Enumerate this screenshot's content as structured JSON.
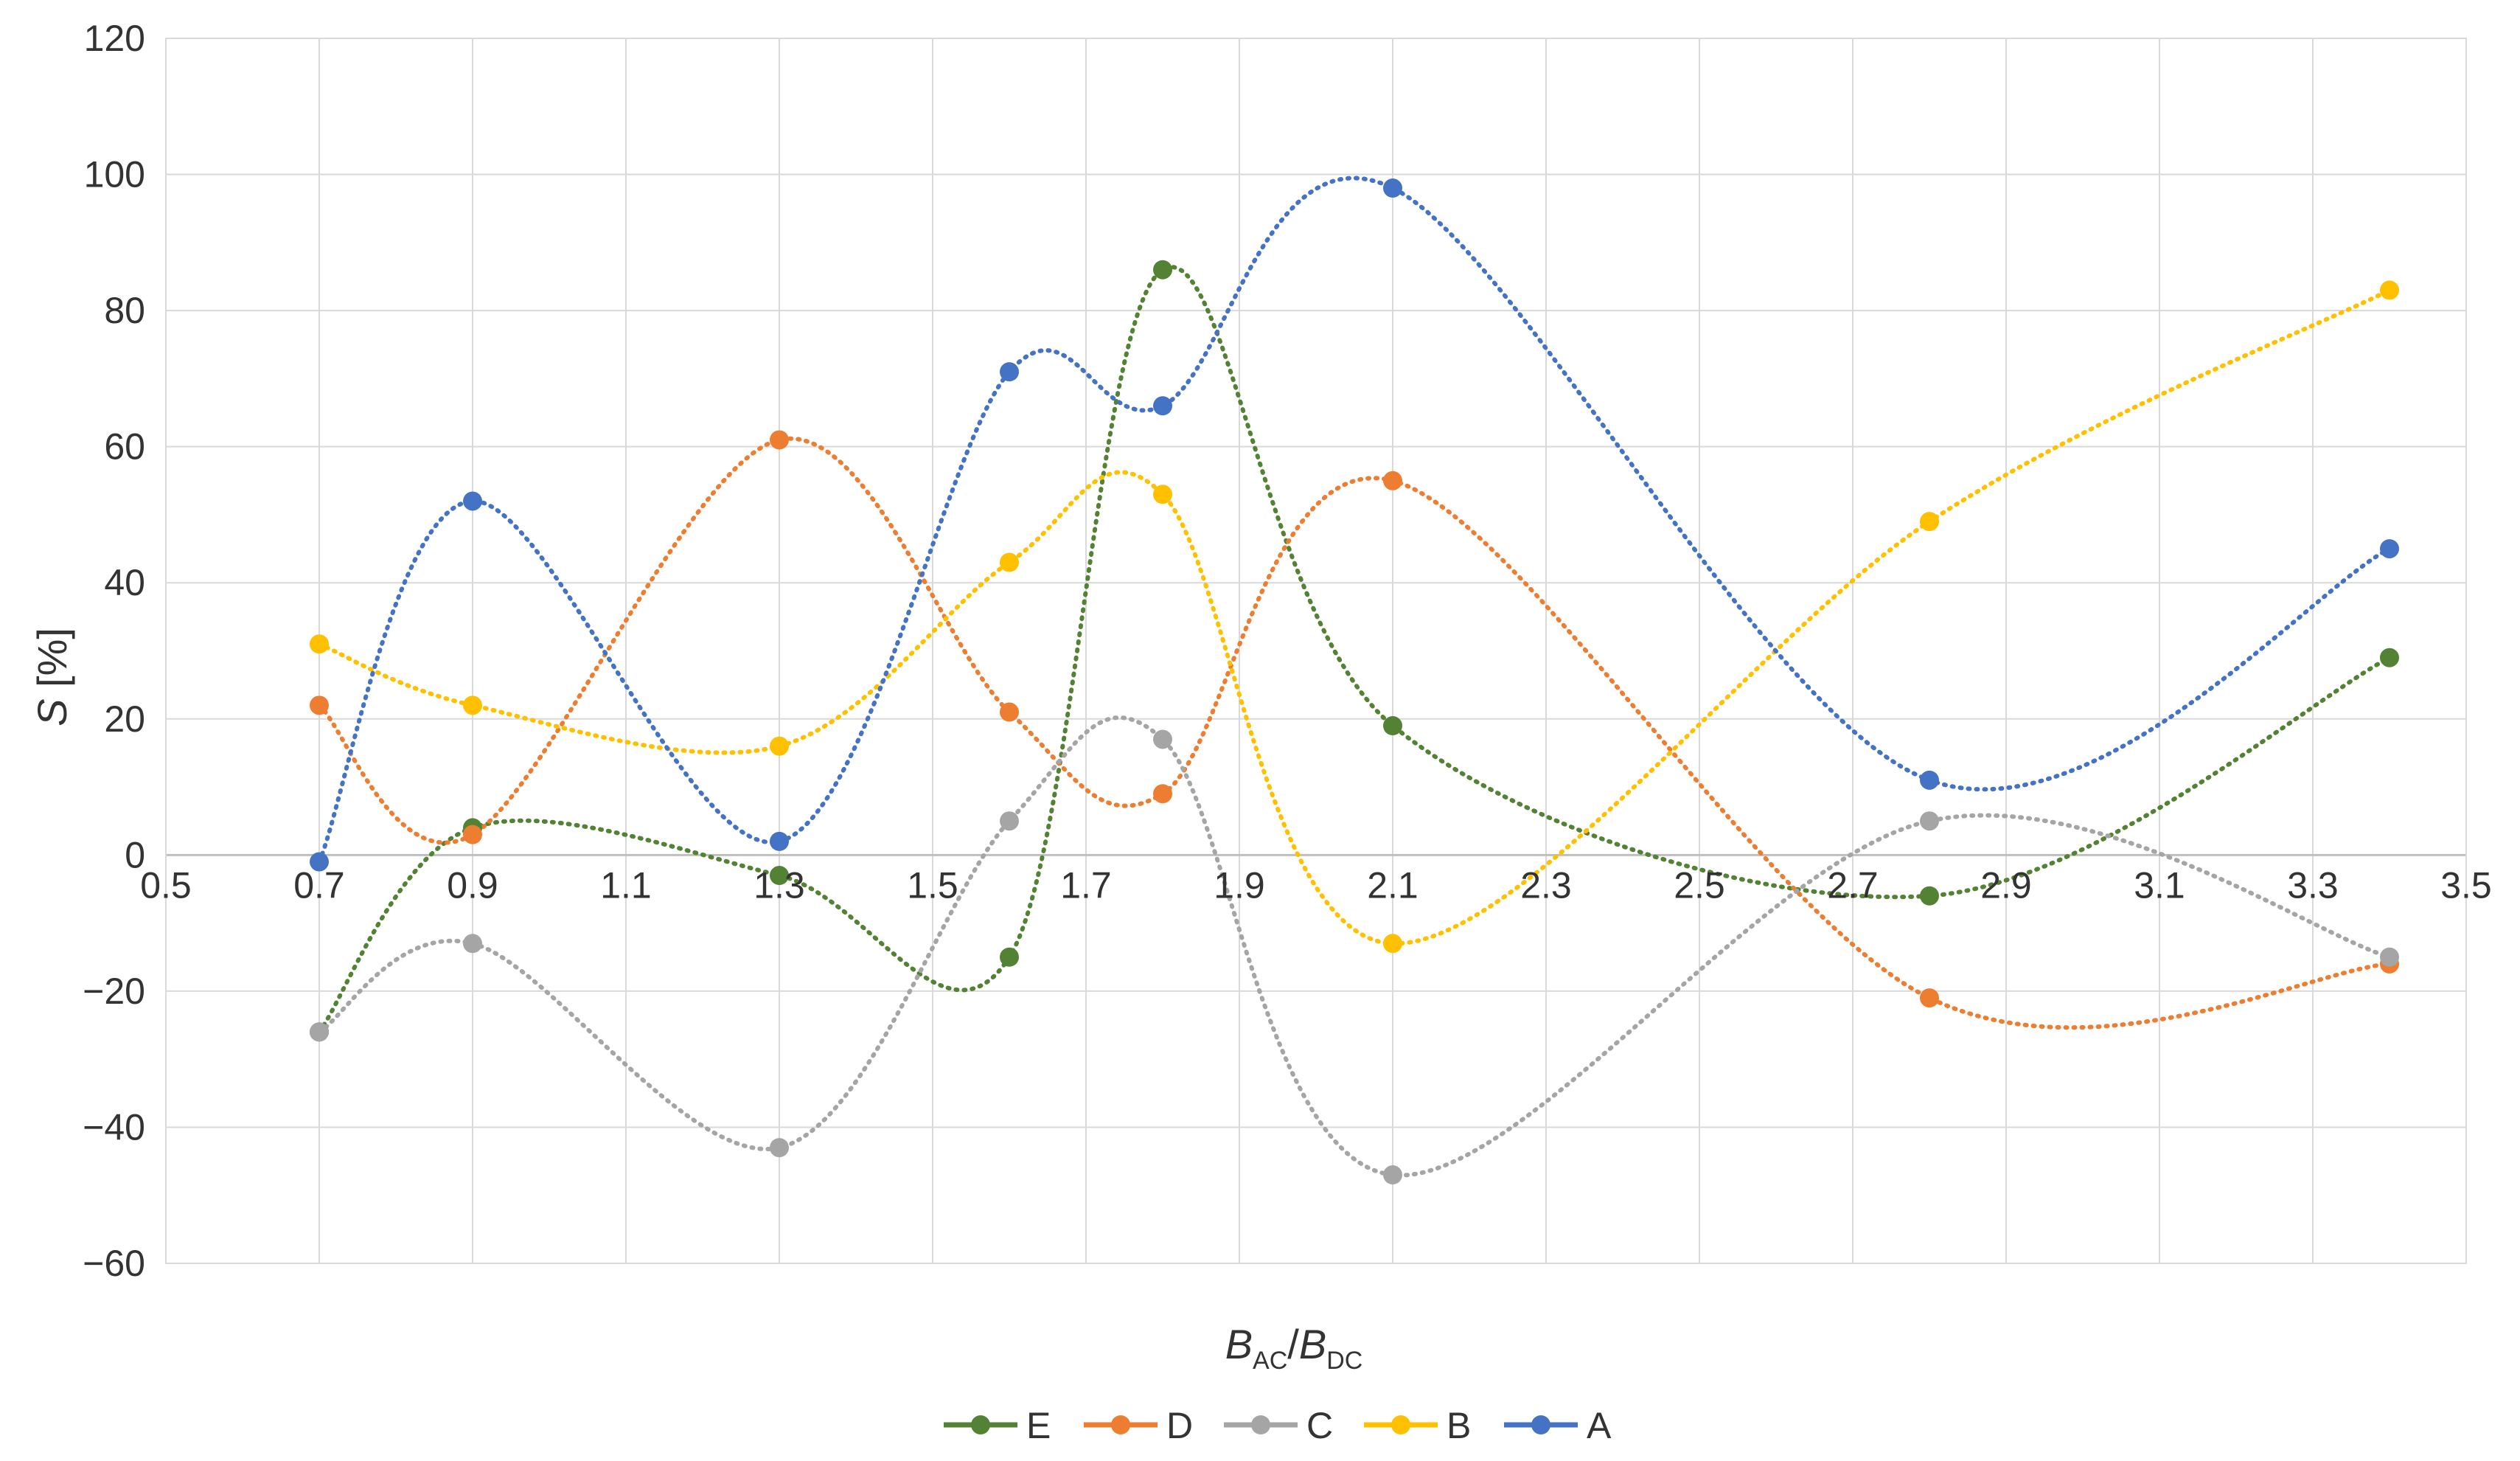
{
  "chart_data": {
    "type": "line",
    "title": "",
    "xlabel": {
      "main": "B",
      "sub1": "AC",
      "slash": "/",
      "main2": "B",
      "sub2": "DC"
    },
    "ylabel": {
      "italic": "S",
      "rest": " [%]"
    },
    "xlim": [
      0.5,
      3.5
    ],
    "ylim": [
      -60,
      120
    ],
    "x_ticks": [
      "0.5",
      "0.7",
      "0.9",
      "1.1",
      "1.3",
      "1.5",
      "1.7",
      "1.9",
      "2.1",
      "2.3",
      "2.5",
      "2.7",
      "2.9",
      "3.1",
      "3.3",
      "3.5"
    ],
    "y_ticks": [
      "120",
      "100",
      "80",
      "60",
      "40",
      "20",
      "0",
      "−20",
      "−40",
      "−60"
    ],
    "grid": true,
    "legend_position": "bottom",
    "x": [
      0.7,
      0.9,
      1.3,
      1.6,
      1.8,
      2.1,
      2.8,
      3.4
    ],
    "series": [
      {
        "name": "E",
        "color": "#548235",
        "values": [
          -26,
          4,
          -3,
          -15,
          86,
          19,
          -6,
          29
        ]
      },
      {
        "name": "D",
        "color": "#ED7D31",
        "values": [
          22,
          3,
          61,
          21,
          9,
          55,
          -21,
          -16
        ]
      },
      {
        "name": "C",
        "color": "#A5A5A5",
        "values": [
          -26,
          -13,
          -43,
          5,
          17,
          -47,
          5,
          -15
        ]
      },
      {
        "name": "B",
        "color": "#FFC000",
        "values": [
          31,
          22,
          16,
          43,
          53,
          -13,
          49,
          83
        ]
      },
      {
        "name": "A",
        "color": "#4472C4",
        "values": [
          -1,
          52,
          2,
          71,
          66,
          98,
          11,
          45
        ]
      }
    ]
  }
}
